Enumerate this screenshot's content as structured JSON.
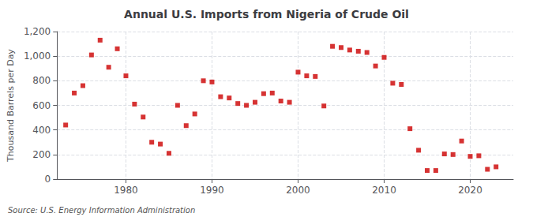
{
  "chart_data": {
    "type": "scatter",
    "title": "Annual U.S. Imports from Nigeria of Crude Oil",
    "ylabel": "Thousand Barrels per Day",
    "source": "Source: U.S. Energy Information Administration",
    "x": [
      1973,
      1974,
      1975,
      1976,
      1977,
      1978,
      1979,
      1980,
      1981,
      1982,
      1983,
      1984,
      1985,
      1986,
      1987,
      1988,
      1989,
      1990,
      1991,
      1992,
      1993,
      1994,
      1995,
      1996,
      1997,
      1998,
      1999,
      2000,
      2001,
      2002,
      2003,
      2004,
      2005,
      2006,
      2007,
      2008,
      2009,
      2010,
      2011,
      2012,
      2013,
      2014,
      2015,
      2016,
      2017,
      2018,
      2019,
      2020,
      2021,
      2022,
      2023
    ],
    "values": [
      440,
      700,
      760,
      1010,
      1130,
      910,
      1060,
      840,
      610,
      505,
      300,
      285,
      210,
      600,
      435,
      530,
      800,
      790,
      670,
      660,
      615,
      600,
      625,
      695,
      700,
      635,
      625,
      870,
      840,
      835,
      595,
      1080,
      1070,
      1050,
      1040,
      1030,
      920,
      990,
      780,
      770,
      410,
      235,
      70,
      70,
      205,
      200,
      310,
      185,
      190,
      80,
      100
    ],
    "color": "#cc0000",
    "marker": "square",
    "xlim": [
      1972,
      2025
    ],
    "xticks": [
      1980,
      1990,
      2000,
      2010,
      2020
    ],
    "ylim": [
      0,
      1200
    ],
    "yticks": [
      0,
      200,
      400,
      600,
      {
        "value": 800,
        "label": "800"
      },
      {
        "value": 1000,
        "label": "1,000"
      },
      {
        "value": 1200,
        "label": "1,200"
      }
    ],
    "grid": true
  }
}
